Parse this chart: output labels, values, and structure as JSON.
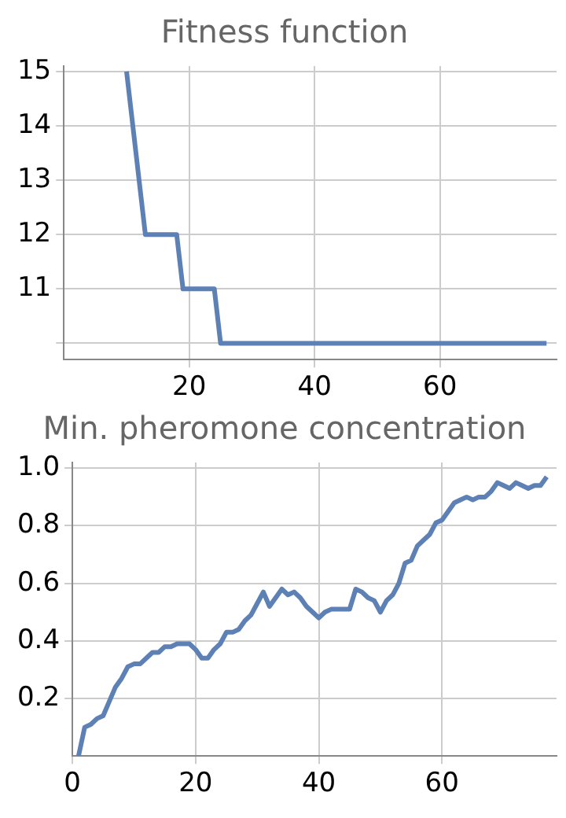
{
  "chart_data": [
    {
      "type": "line",
      "title": "Fitness function",
      "x": [
        10,
        13,
        18,
        19,
        24,
        25,
        77
      ],
      "series": [
        {
          "color": "#5e81b5",
          "values": [
            15,
            12,
            12,
            11,
            11,
            10,
            10
          ]
        }
      ],
      "xlim": [
        0,
        78.6
      ],
      "xticks": [
        20,
        40,
        60
      ],
      "ylim": [
        9.7,
        15.1
      ],
      "yticks": [
        {
          "value": 10,
          "label": null
        },
        11,
        12,
        13,
        14,
        15
      ],
      "grid": true,
      "marker": "none",
      "line_style": "solid"
    },
    {
      "type": "line",
      "title": "Min. pheromone concentration",
      "x": [
        1,
        2,
        3,
        4,
        5,
        6,
        7,
        8,
        9,
        10,
        11,
        12,
        13,
        14,
        15,
        16,
        17,
        18,
        19,
        20,
        21,
        22,
        23,
        24,
        25,
        26,
        27,
        28,
        29,
        30,
        31,
        32,
        33,
        34,
        35,
        36,
        37,
        38,
        39,
        40,
        41,
        42,
        43,
        44,
        45,
        46,
        47,
        48,
        49,
        50,
        51,
        52,
        53,
        54,
        55,
        56,
        57,
        58,
        59,
        60,
        61,
        62,
        63,
        64,
        65,
        66,
        67,
        68,
        69,
        70,
        71,
        72,
        73,
        74,
        75,
        76,
        77
      ],
      "series": [
        {
          "color": "#5e81b5",
          "values": [
            0.0,
            0.1,
            0.11,
            0.13,
            0.14,
            0.19,
            0.24,
            0.27,
            0.31,
            0.32,
            0.32,
            0.34,
            0.36,
            0.36,
            0.38,
            0.38,
            0.39,
            0.39,
            0.39,
            0.37,
            0.34,
            0.34,
            0.37,
            0.39,
            0.43,
            0.43,
            0.44,
            0.47,
            0.49,
            0.53,
            0.57,
            0.52,
            0.55,
            0.58,
            0.56,
            0.57,
            0.55,
            0.52,
            0.5,
            0.48,
            0.5,
            0.51,
            0.51,
            0.51,
            0.51,
            0.58,
            0.57,
            0.55,
            0.54,
            0.5,
            0.54,
            0.56,
            0.6,
            0.67,
            0.68,
            0.73,
            0.75,
            0.77,
            0.81,
            0.82,
            0.85,
            0.88,
            0.89,
            0.9,
            0.89,
            0.9,
            0.9,
            0.92,
            0.95,
            0.94,
            0.93,
            0.95,
            0.94,
            0.93,
            0.94,
            0.94,
            0.97
          ]
        }
      ],
      "xlim": [
        0,
        78.6
      ],
      "xticks": [
        0,
        20,
        40,
        60
      ],
      "ylim": [
        0,
        1.02
      ],
      "yticks": [
        0.2,
        0.4,
        0.6,
        0.8,
        {
          "value": 1,
          "label": "1.0"
        }
      ],
      "grid": true,
      "marker": "none",
      "line_style": "solid"
    }
  ]
}
